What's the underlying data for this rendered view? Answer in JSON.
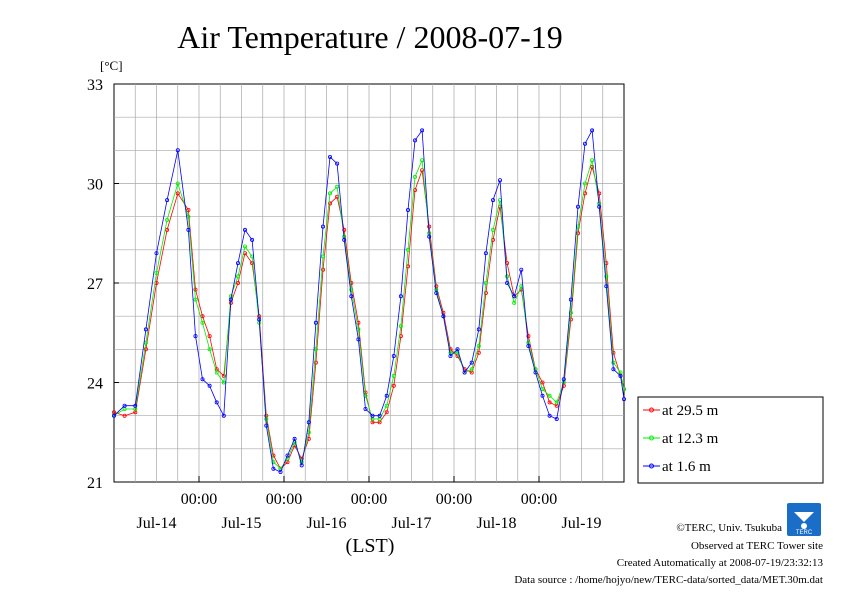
{
  "chart_data": {
    "type": "line",
    "title": "Air Temperature / 2008-07-19",
    "unit": "[°C]",
    "xlabel": "(LST)",
    "ylim": [
      21,
      33
    ],
    "yticks": [
      "21",
      "24",
      "27",
      "30",
      "33"
    ],
    "xlim_hours": [
      0,
      144
    ],
    "time_ticks": [
      "00:00",
      "00:00",
      "00:00",
      "00:00",
      "00:00"
    ],
    "date_labels": [
      "Jul-14",
      "Jul-15",
      "Jul-16",
      "Jul-17",
      "Jul-18",
      "Jul-19"
    ],
    "grid": true,
    "legend_position": "right",
    "series": [
      {
        "name": "at 29.5 m",
        "color": "#ff0000",
        "points": [
          [
            0,
            23.1
          ],
          [
            3,
            23.0
          ],
          [
            6,
            23.1
          ],
          [
            9,
            25.0
          ],
          [
            12,
            27.0
          ],
          [
            15,
            28.6
          ],
          [
            18,
            29.7
          ],
          [
            21,
            29.2
          ],
          [
            23,
            26.8
          ],
          [
            25,
            26.0
          ],
          [
            27,
            25.4
          ],
          [
            29,
            24.4
          ],
          [
            31,
            24.2
          ],
          [
            33,
            26.4
          ],
          [
            35,
            27.0
          ],
          [
            37,
            27.9
          ],
          [
            39,
            27.6
          ],
          [
            41,
            26.0
          ],
          [
            43,
            23.0
          ],
          [
            45,
            21.8
          ],
          [
            47,
            21.4
          ],
          [
            49,
            21.6
          ],
          [
            51,
            22.1
          ],
          [
            53,
            21.7
          ],
          [
            55,
            22.3
          ],
          [
            57,
            24.6
          ],
          [
            59,
            27.4
          ],
          [
            61,
            29.4
          ],
          [
            63,
            29.6
          ],
          [
            65,
            28.6
          ],
          [
            67,
            27.0
          ],
          [
            69,
            25.8
          ],
          [
            71,
            23.7
          ],
          [
            73,
            22.8
          ],
          [
            75,
            22.8
          ],
          [
            77,
            23.1
          ],
          [
            79,
            23.9
          ],
          [
            81,
            25.4
          ],
          [
            83,
            27.5
          ],
          [
            85,
            29.8
          ],
          [
            87,
            30.4
          ],
          [
            89,
            28.7
          ],
          [
            91,
            26.9
          ],
          [
            93,
            26.1
          ],
          [
            95,
            25.0
          ],
          [
            97,
            24.8
          ],
          [
            99,
            24.4
          ],
          [
            101,
            24.3
          ],
          [
            103,
            24.9
          ],
          [
            105,
            26.7
          ],
          [
            107,
            28.3
          ],
          [
            109,
            29.3
          ],
          [
            111,
            27.6
          ],
          [
            113,
            26.6
          ],
          [
            115,
            26.8
          ],
          [
            117,
            25.4
          ],
          [
            119,
            24.4
          ],
          [
            121,
            24.0
          ],
          [
            123,
            23.4
          ],
          [
            125,
            23.3
          ],
          [
            127,
            23.9
          ],
          [
            129,
            25.9
          ],
          [
            131,
            28.5
          ],
          [
            133,
            29.7
          ],
          [
            135,
            30.5
          ],
          [
            137,
            29.7
          ],
          [
            139,
            27.6
          ],
          [
            141,
            24.9
          ],
          [
            143,
            24.2
          ],
          [
            144,
            23.8
          ]
        ]
      },
      {
        "name": "at 12.3 m",
        "color": "#00ee00",
        "points": [
          [
            0,
            23.0
          ],
          [
            3,
            23.2
          ],
          [
            6,
            23.2
          ],
          [
            9,
            25.2
          ],
          [
            12,
            27.3
          ],
          [
            15,
            28.9
          ],
          [
            18,
            30.0
          ],
          [
            21,
            29.0
          ],
          [
            23,
            26.5
          ],
          [
            25,
            25.8
          ],
          [
            27,
            25.0
          ],
          [
            29,
            24.3
          ],
          [
            31,
            24.0
          ],
          [
            33,
            26.6
          ],
          [
            35,
            27.2
          ],
          [
            37,
            28.1
          ],
          [
            39,
            27.8
          ],
          [
            41,
            25.8
          ],
          [
            43,
            22.9
          ],
          [
            45,
            21.6
          ],
          [
            47,
            21.4
          ],
          [
            49,
            21.7
          ],
          [
            51,
            22.2
          ],
          [
            53,
            21.6
          ],
          [
            55,
            22.5
          ],
          [
            57,
            25.0
          ],
          [
            59,
            27.8
          ],
          [
            61,
            29.7
          ],
          [
            63,
            29.9
          ],
          [
            65,
            28.4
          ],
          [
            67,
            26.8
          ],
          [
            69,
            25.6
          ],
          [
            71,
            23.6
          ],
          [
            73,
            22.9
          ],
          [
            75,
            22.9
          ],
          [
            77,
            23.3
          ],
          [
            79,
            24.2
          ],
          [
            81,
            25.7
          ],
          [
            83,
            28.0
          ],
          [
            85,
            30.2
          ],
          [
            87,
            30.7
          ],
          [
            89,
            28.5
          ],
          [
            91,
            26.8
          ],
          [
            93,
            26.0
          ],
          [
            95,
            24.9
          ],
          [
            97,
            24.9
          ],
          [
            99,
            24.3
          ],
          [
            101,
            24.4
          ],
          [
            103,
            25.1
          ],
          [
            105,
            27.0
          ],
          [
            107,
            28.6
          ],
          [
            109,
            29.5
          ],
          [
            111,
            27.2
          ],
          [
            113,
            26.4
          ],
          [
            115,
            26.9
          ],
          [
            117,
            25.2
          ],
          [
            119,
            24.4
          ],
          [
            121,
            23.8
          ],
          [
            123,
            23.6
          ],
          [
            125,
            23.4
          ],
          [
            127,
            24.0
          ],
          [
            129,
            26.1
          ],
          [
            131,
            28.7
          ],
          [
            133,
            30.0
          ],
          [
            135,
            30.7
          ],
          [
            137,
            29.4
          ],
          [
            139,
            27.2
          ],
          [
            141,
            24.6
          ],
          [
            143,
            24.3
          ],
          [
            144,
            23.8
          ]
        ]
      },
      {
        "name": "at 1.6 m",
        "color": "#0000ff",
        "points": [
          [
            0,
            23.0
          ],
          [
            3,
            23.3
          ],
          [
            6,
            23.3
          ],
          [
            9,
            25.6
          ],
          [
            12,
            27.9
          ],
          [
            15,
            29.5
          ],
          [
            18,
            31.0
          ],
          [
            21,
            28.6
          ],
          [
            23,
            25.4
          ],
          [
            25,
            24.1
          ],
          [
            27,
            23.9
          ],
          [
            29,
            23.4
          ],
          [
            31,
            23.0
          ],
          [
            33,
            26.5
          ],
          [
            35,
            27.6
          ],
          [
            37,
            28.6
          ],
          [
            39,
            28.3
          ],
          [
            41,
            25.9
          ],
          [
            43,
            22.7
          ],
          [
            45,
            21.4
          ],
          [
            47,
            21.3
          ],
          [
            49,
            21.8
          ],
          [
            51,
            22.3
          ],
          [
            53,
            21.5
          ],
          [
            55,
            22.8
          ],
          [
            57,
            25.8
          ],
          [
            59,
            28.7
          ],
          [
            61,
            30.8
          ],
          [
            63,
            30.6
          ],
          [
            65,
            28.3
          ],
          [
            67,
            26.6
          ],
          [
            69,
            25.3
          ],
          [
            71,
            23.2
          ],
          [
            73,
            23.0
          ],
          [
            75,
            23.0
          ],
          [
            77,
            23.6
          ],
          [
            79,
            24.8
          ],
          [
            81,
            26.6
          ],
          [
            83,
            29.2
          ],
          [
            85,
            31.3
          ],
          [
            87,
            31.6
          ],
          [
            89,
            28.4
          ],
          [
            91,
            26.7
          ],
          [
            93,
            26.0
          ],
          [
            95,
            24.8
          ],
          [
            97,
            25.0
          ],
          [
            99,
            24.3
          ],
          [
            101,
            24.6
          ],
          [
            103,
            25.6
          ],
          [
            105,
            27.9
          ],
          [
            107,
            29.5
          ],
          [
            109,
            30.1
          ],
          [
            111,
            27.0
          ],
          [
            113,
            26.6
          ],
          [
            115,
            27.4
          ],
          [
            117,
            25.1
          ],
          [
            119,
            24.3
          ],
          [
            121,
            23.6
          ],
          [
            123,
            23.0
          ],
          [
            125,
            22.9
          ],
          [
            127,
            24.1
          ],
          [
            129,
            26.5
          ],
          [
            131,
            29.3
          ],
          [
            133,
            31.2
          ],
          [
            135,
            31.6
          ],
          [
            137,
            29.3
          ],
          [
            139,
            26.9
          ],
          [
            141,
            24.4
          ],
          [
            143,
            24.2
          ],
          [
            144,
            23.5
          ]
        ]
      }
    ]
  },
  "footer": {
    "copyright": "©TERC, Univ. Tsukuba",
    "observed": "Observed at TERC Tower site",
    "created": "Created Automatically at 2008-07-19/23:32:13",
    "source": "Data source : /home/hojyo/new/TERC-data/sorted_data/MET.30m.dat"
  },
  "logo_text": "TERC"
}
